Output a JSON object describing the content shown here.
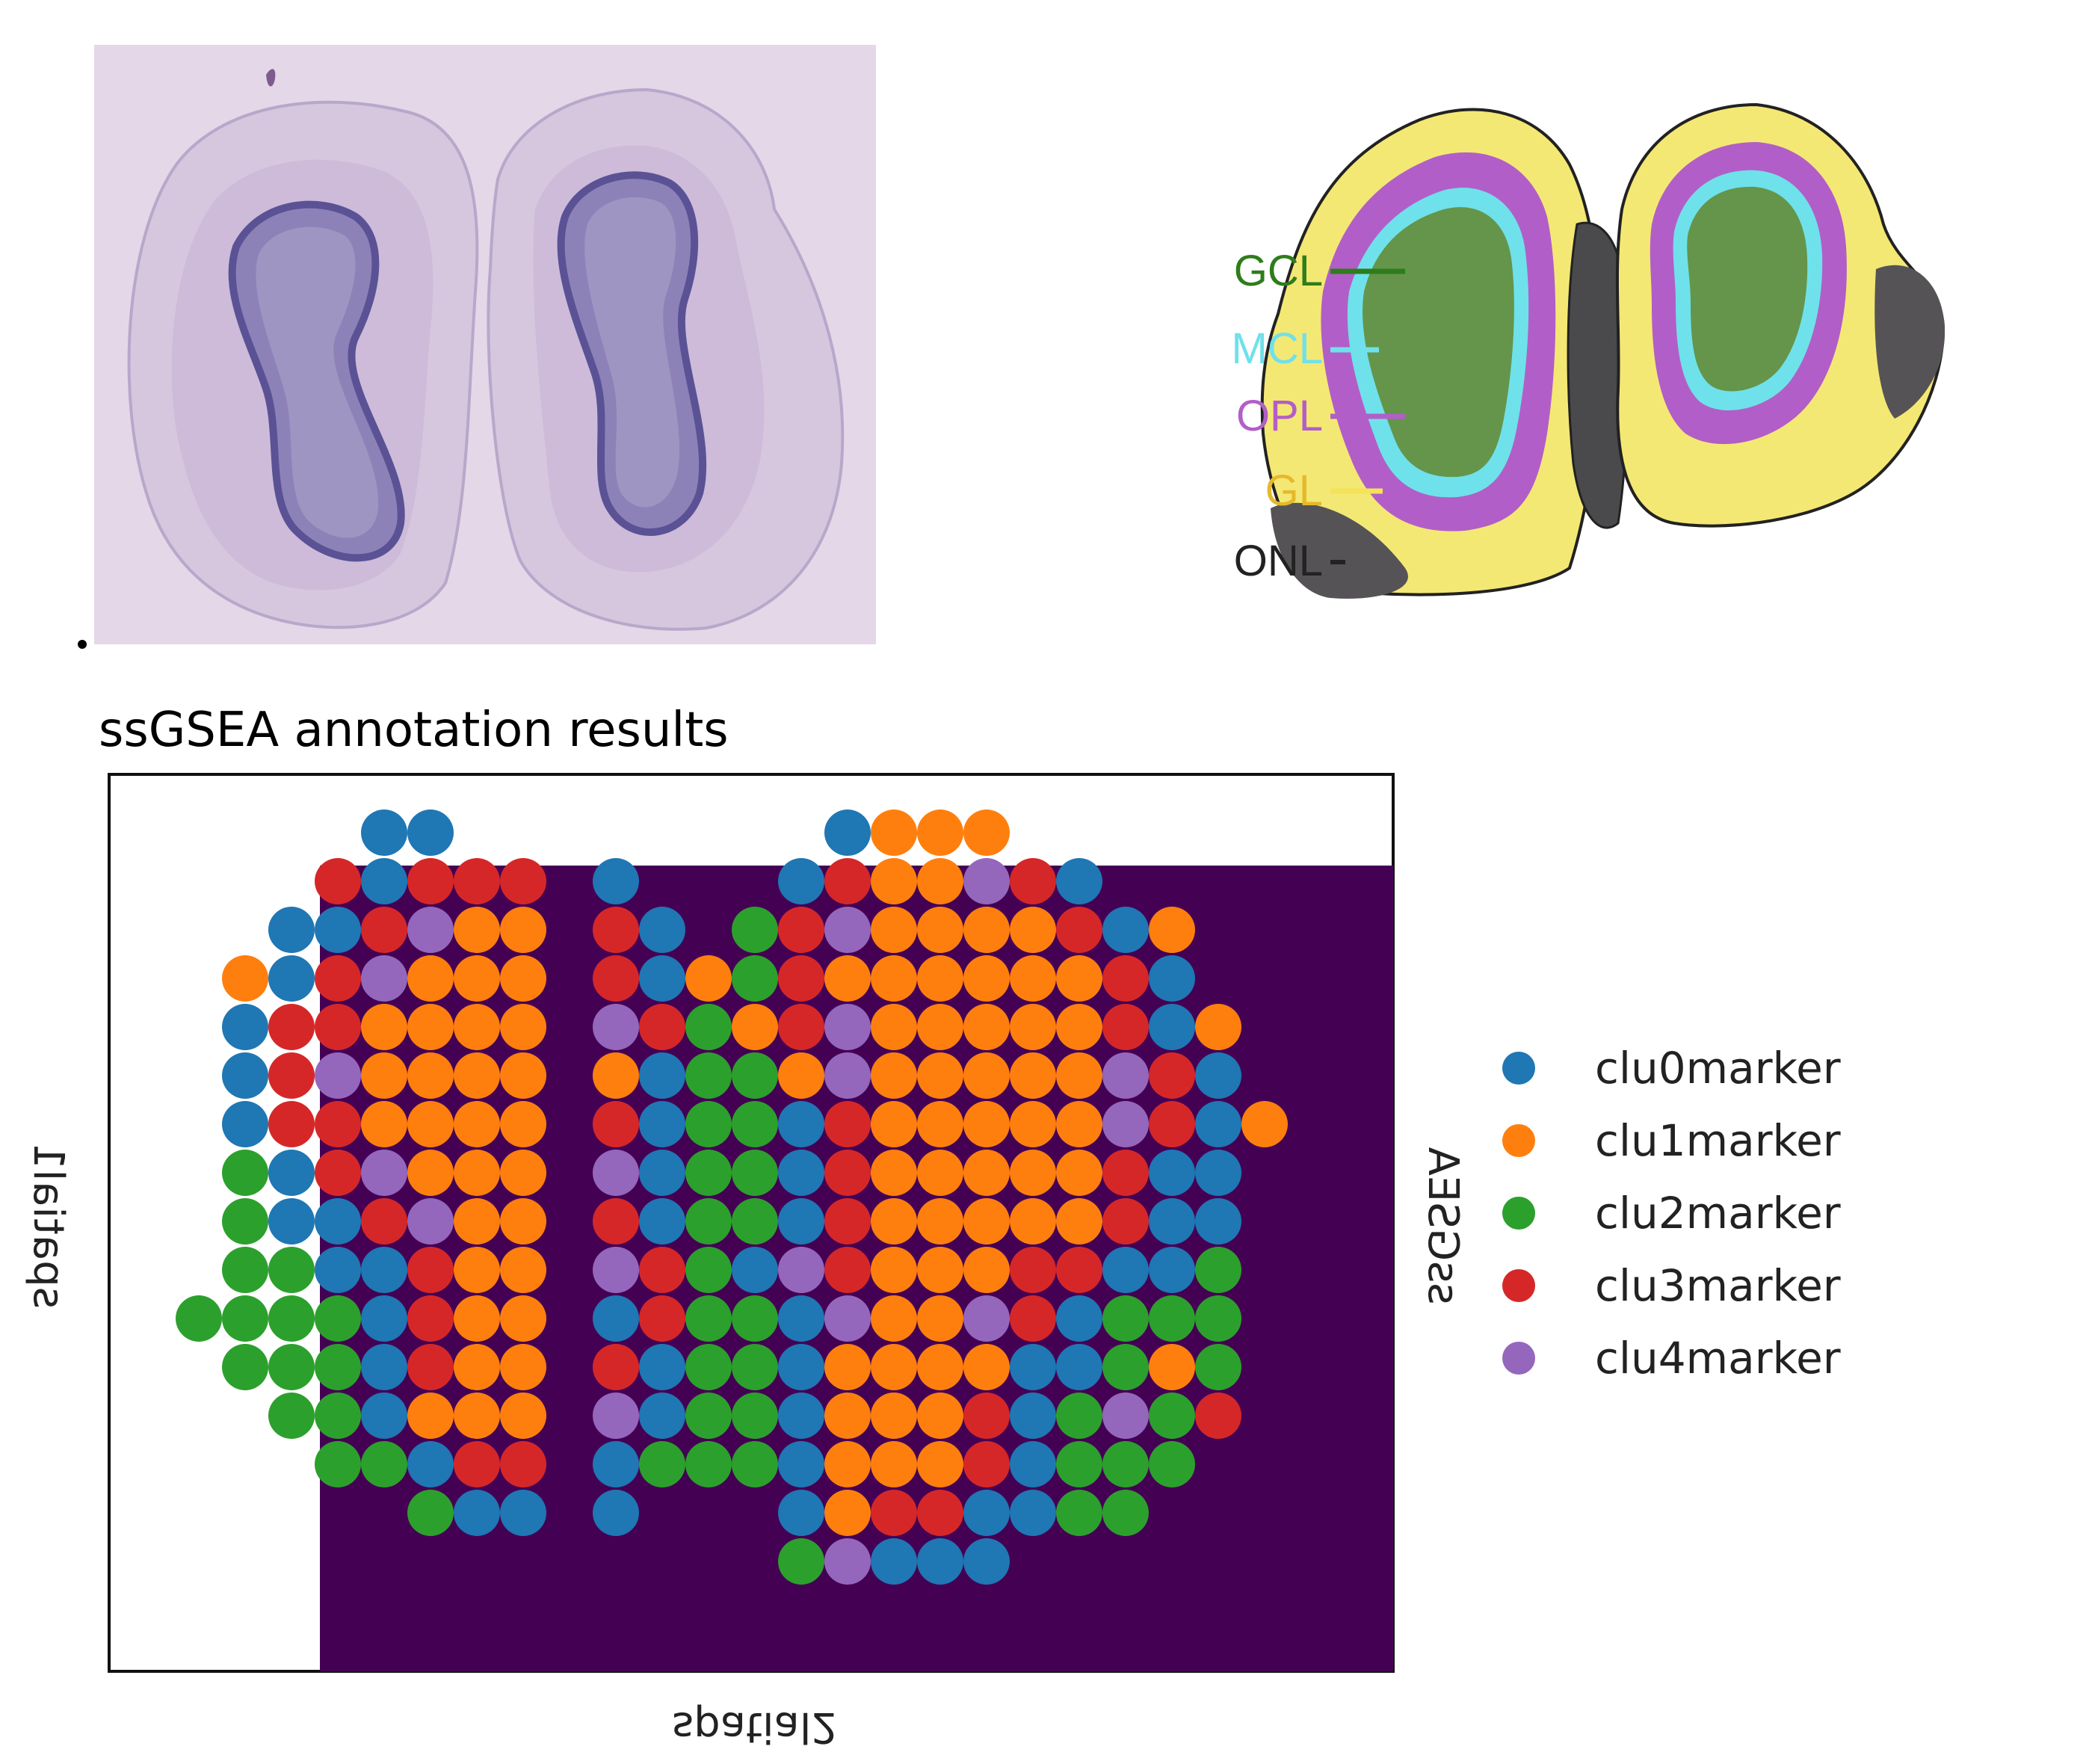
{
  "layer_labels": [
    "GCL",
    "MCL",
    "OPL",
    "GL",
    "ONL"
  ],
  "layer_colors": {
    "GCL": "#2e7d1a",
    "MCL": "#6fe1ea",
    "OPL": "#b25ec8",
    "GL": "#f4e25a",
    "ONL": "#222222",
    "GL_label": "#e6b92a"
  },
  "section_title": "ssGSEA annotation results",
  "chart_data": {
    "type": "scatter",
    "title": "ssGSEA annotation results",
    "xlabel": "spatial2",
    "ylabel": "spatial1",
    "right_label": "ssGSEA",
    "grid": false,
    "legend_position": "right",
    "background_color": "#440154",
    "categories": [
      "clu0marker",
      "clu1marker",
      "clu2marker",
      "clu3marker",
      "clu4marker"
    ],
    "colors": {
      "clu0marker": "#1f77b4",
      "clu1marker": "#ff7f0e",
      "clu2marker": "#2ca02c",
      "clu3marker": "#d62728",
      "clu4marker": "#9467bd"
    },
    "grid_columns": 22,
    "grid_rows": 16,
    "rows": [
      {
        "r": 0,
        "cols": [
          5,
          6,
          15,
          16,
          17,
          18
        ],
        "cats": [
          0,
          0,
          0,
          1,
          1,
          1
        ]
      },
      {
        "r": 1,
        "cols": [
          4,
          5,
          6,
          7,
          8,
          10,
          14,
          15,
          16,
          17,
          18,
          19,
          20
        ],
        "cats": [
          3,
          0,
          3,
          3,
          3,
          0,
          0,
          3,
          1,
          1,
          4,
          3,
          0
        ]
      },
      {
        "r": 2,
        "cols": [
          3,
          4,
          5,
          6,
          7,
          8,
          10,
          11,
          13,
          14,
          15,
          16,
          17,
          18,
          19,
          20,
          21,
          22
        ],
        "cats": [
          0,
          0,
          3,
          4,
          1,
          1,
          3,
          0,
          2,
          3,
          4,
          1,
          1,
          1,
          1,
          3,
          0,
          1
        ]
      },
      {
        "r": 3,
        "cols": [
          2,
          3,
          4,
          5,
          6,
          7,
          8,
          10,
          11,
          12,
          13,
          14,
          15,
          16,
          17,
          18,
          19,
          20,
          21,
          22
        ],
        "cats": [
          1,
          0,
          3,
          4,
          1,
          1,
          1,
          3,
          0,
          1,
          2,
          3,
          1,
          1,
          1,
          1,
          1,
          1,
          3,
          0
        ]
      },
      {
        "r": 4,
        "cols": [
          2,
          3,
          4,
          5,
          6,
          7,
          8,
          10,
          11,
          12,
          13,
          14,
          15,
          16,
          17,
          18,
          19,
          20,
          21,
          22,
          23
        ],
        "cats": [
          0,
          3,
          3,
          1,
          1,
          1,
          1,
          4,
          3,
          2,
          1,
          3,
          4,
          1,
          1,
          1,
          1,
          1,
          3,
          0,
          1
        ]
      },
      {
        "r": 5,
        "cols": [
          2,
          3,
          4,
          5,
          6,
          7,
          8,
          10,
          11,
          12,
          13,
          14,
          15,
          16,
          17,
          18,
          19,
          20,
          21,
          22,
          23
        ],
        "cats": [
          0,
          3,
          4,
          1,
          1,
          1,
          1,
          1,
          0,
          2,
          2,
          1,
          4,
          1,
          1,
          1,
          1,
          1,
          4,
          3,
          0
        ]
      },
      {
        "r": 6,
        "cols": [
          2,
          3,
          4,
          5,
          6,
          7,
          8,
          10,
          11,
          12,
          13,
          14,
          15,
          16,
          17,
          18,
          19,
          20,
          21,
          22,
          23,
          24
        ],
        "cats": [
          0,
          3,
          3,
          1,
          1,
          1,
          1,
          3,
          0,
          2,
          2,
          0,
          3,
          1,
          1,
          1,
          1,
          1,
          4,
          3,
          0,
          1
        ]
      },
      {
        "r": 7,
        "cols": [
          2,
          3,
          4,
          5,
          6,
          7,
          8,
          10,
          11,
          12,
          13,
          14,
          15,
          16,
          17,
          18,
          19,
          20,
          21,
          22,
          23
        ],
        "cats": [
          2,
          0,
          3,
          4,
          1,
          1,
          1,
          4,
          0,
          2,
          2,
          0,
          3,
          1,
          1,
          1,
          1,
          1,
          3,
          0,
          0
        ]
      },
      {
        "r": 8,
        "cols": [
          2,
          3,
          4,
          5,
          6,
          7,
          8,
          10,
          11,
          12,
          13,
          14,
          15,
          16,
          17,
          18,
          19,
          20,
          21,
          22,
          23
        ],
        "cats": [
          2,
          0,
          0,
          3,
          4,
          1,
          1,
          3,
          0,
          2,
          2,
          0,
          3,
          1,
          1,
          1,
          1,
          1,
          3,
          0,
          0
        ]
      },
      {
        "r": 9,
        "cols": [
          2,
          3,
          4,
          5,
          6,
          7,
          8,
          10,
          11,
          12,
          13,
          14,
          15,
          16,
          17,
          18,
          19,
          20,
          21,
          22,
          23
        ],
        "cats": [
          2,
          2,
          0,
          0,
          3,
          1,
          1,
          4,
          3,
          2,
          0,
          4,
          3,
          1,
          1,
          1,
          3,
          3,
          0,
          0,
          2
        ]
      },
      {
        "r": 10,
        "cols": [
          1,
          2,
          3,
          4,
          5,
          6,
          7,
          8,
          10,
          11,
          12,
          13,
          14,
          15,
          16,
          17,
          18,
          19,
          20,
          21,
          22,
          23
        ],
        "cats": [
          2,
          2,
          2,
          2,
          0,
          3,
          1,
          1,
          0,
          3,
          2,
          2,
          0,
          4,
          1,
          1,
          4,
          3,
          0,
          2,
          2,
          2
        ]
      },
      {
        "r": 11,
        "cols": [
          2,
          3,
          4,
          5,
          6,
          7,
          8,
          10,
          11,
          12,
          13,
          14,
          15,
          16,
          17,
          18,
          19,
          20,
          21,
          22,
          23
        ],
        "cats": [
          2,
          2,
          2,
          0,
          3,
          1,
          1,
          3,
          0,
          2,
          2,
          0,
          1,
          1,
          1,
          1,
          0,
          0,
          2,
          1,
          2
        ]
      },
      {
        "r": 12,
        "cols": [
          3,
          4,
          5,
          6,
          7,
          8,
          10,
          11,
          12,
          13,
          14,
          15,
          16,
          17,
          18,
          19,
          20,
          21,
          22,
          23
        ],
        "cats": [
          2,
          2,
          0,
          1,
          1,
          1,
          4,
          0,
          2,
          2,
          0,
          1,
          1,
          1,
          3,
          0,
          2,
          4,
          2,
          3
        ]
      },
      {
        "r": 13,
        "cols": [
          4,
          5,
          6,
          7,
          8,
          10,
          11,
          12,
          13,
          14,
          15,
          16,
          17,
          18,
          19,
          20,
          21,
          22
        ],
        "cats": [
          2,
          2,
          0,
          3,
          3,
          0,
          2,
          2,
          2,
          0,
          1,
          1,
          1,
          3,
          0,
          2,
          2,
          2
        ]
      },
      {
        "r": 14,
        "cols": [
          6,
          7,
          8,
          10,
          14,
          15,
          16,
          17,
          18,
          19,
          20,
          21
        ],
        "cats": [
          2,
          0,
          0,
          0,
          0,
          1,
          3,
          3,
          0,
          0,
          2,
          2
        ]
      },
      {
        "r": 15,
        "cols": [
          14,
          15,
          16,
          17,
          18
        ],
        "cats": [
          2,
          4,
          0,
          0,
          0
        ]
      }
    ]
  }
}
